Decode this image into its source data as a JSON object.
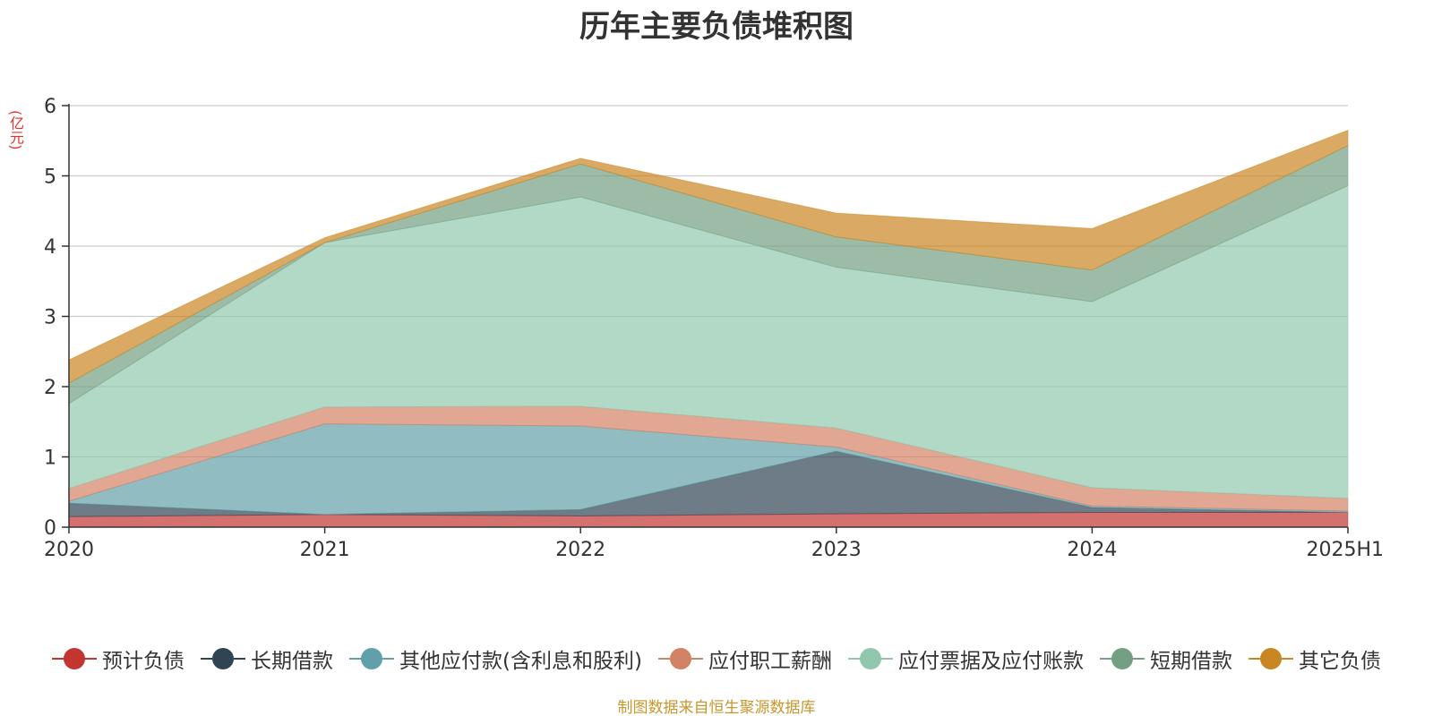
{
  "title": "历年主要负债堆积图",
  "unit": "(亿元)",
  "source_note": "制图数据来自恒生聚源数据库",
  "chart_data": {
    "type": "area",
    "stacked": true,
    "categories": [
      "2020",
      "2021",
      "2022",
      "2023",
      "2024",
      "2025H1"
    ],
    "yticks": [
      "0",
      "1",
      "2",
      "3",
      "4",
      "5",
      "6"
    ],
    "ylim": [
      0,
      6
    ],
    "grid": true,
    "legend_position": "bottom",
    "series": [
      {
        "name": "预计负债",
        "color": "#c23531",
        "values": [
          0.15,
          0.18,
          0.16,
          0.19,
          0.21,
          0.21
        ]
      },
      {
        "name": "长期借款",
        "color": "#2f4554",
        "values": [
          0.19,
          0.0,
          0.09,
          0.89,
          0.07,
          0.0
        ]
      },
      {
        "name": "其他应付款(含利息和股利)",
        "color": "#61a0a8",
        "values": [
          0.03,
          1.29,
          1.19,
          0.06,
          0.02,
          0.02
        ]
      },
      {
        "name": "应付职工薪酬",
        "color": "#d48265",
        "values": [
          0.18,
          0.24,
          0.28,
          0.27,
          0.26,
          0.18
        ]
      },
      {
        "name": "应付票据及应付账款",
        "color": "#91c7ae",
        "values": [
          1.21,
          2.34,
          2.98,
          2.29,
          2.65,
          4.45
        ]
      },
      {
        "name": "短期借款",
        "color": "#749f83",
        "values": [
          0.29,
          0.0,
          0.47,
          0.43,
          0.45,
          0.57
        ]
      },
      {
        "name": "其它负债",
        "color": "#ca8622",
        "values": [
          0.33,
          0.07,
          0.08,
          0.34,
          0.59,
          0.22
        ]
      }
    ]
  }
}
